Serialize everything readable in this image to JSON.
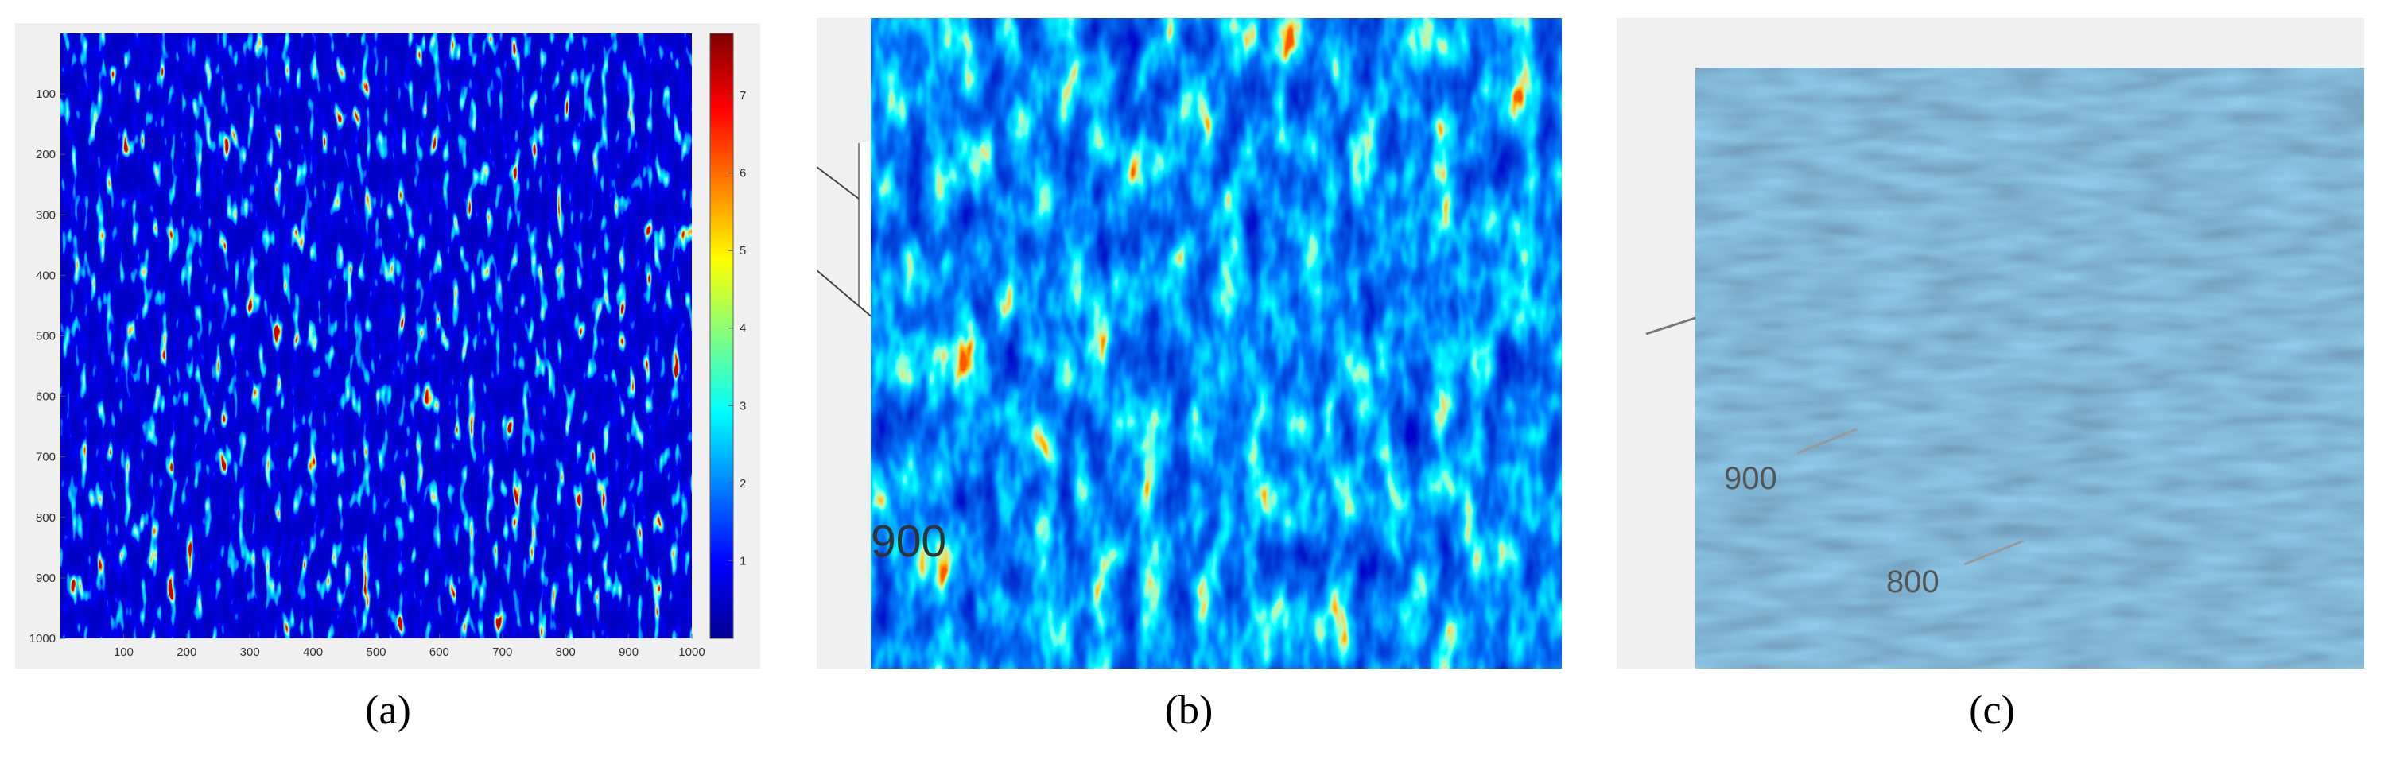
{
  "panels": [
    {
      "label": "(a)",
      "heatmap": {
        "xlim": [
          0,
          1000
        ],
        "ylim": [
          0,
          1000
        ],
        "xticks": [
          100,
          200,
          300,
          400,
          500,
          600,
          700,
          800,
          900,
          1000
        ],
        "yticks": [
          100,
          200,
          300,
          400,
          500,
          600,
          700,
          800,
          900,
          1000
        ],
        "clim": [
          0,
          7.8
        ],
        "colorbar_ticks": [
          1,
          2,
          3,
          4,
          5,
          6,
          7
        ]
      }
    },
    {
      "label": "(b)",
      "axis_label": "900"
    },
    {
      "label": "(c)",
      "axis_labels": [
        "900",
        "800"
      ]
    }
  ]
}
